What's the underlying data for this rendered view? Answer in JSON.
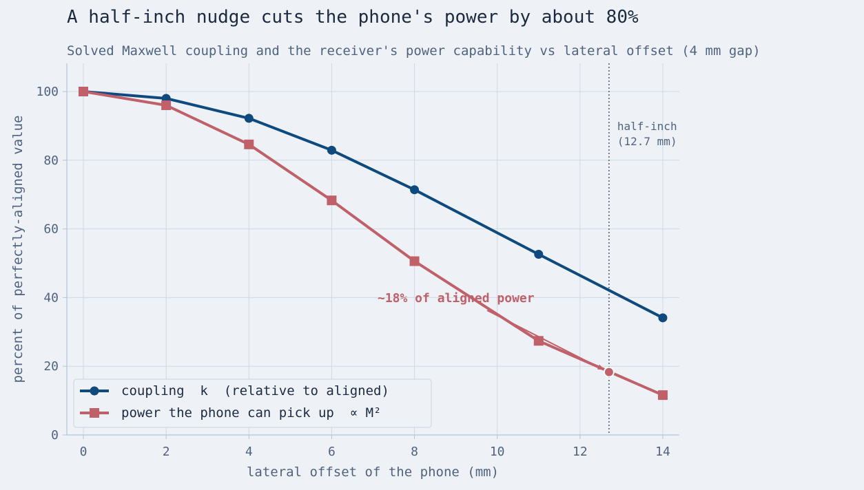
{
  "chart_data": {
    "type": "line",
    "title": "A half-inch nudge cuts the phone's power by about 80%",
    "subtitle": "Solved Maxwell coupling and the receiver's power capability vs lateral offset (4 mm gap)",
    "xlabel": "lateral offset of the phone (mm)",
    "ylabel": "percent of perfectly-aligned value",
    "xlim": [
      -0.3,
      14.4
    ],
    "ylim": [
      0,
      108
    ],
    "xticks": [
      0,
      2,
      4,
      6,
      8,
      10,
      12,
      14
    ],
    "yticks": [
      0,
      20,
      40,
      60,
      80,
      100
    ],
    "grid": true,
    "legend_position": "lower-left",
    "series": [
      {
        "name": "coupling  k  (relative to aligned)",
        "color": "#0f4a7e",
        "marker": "circle",
        "x": [
          0,
          2,
          4,
          6,
          8,
          11,
          14
        ],
        "y": [
          100,
          98,
          92.2,
          82.9,
          71.4,
          52.6,
          34.1
        ]
      },
      {
        "name": "power the phone can pick up  ∝ M²",
        "color": "#c0616a",
        "marker": "square",
        "x": [
          0,
          2,
          4,
          6,
          8,
          11,
          14
        ],
        "y": [
          100,
          96,
          84.6,
          68.3,
          50.6,
          27.4,
          11.6
        ]
      }
    ],
    "reference_line": {
      "x": 12.7,
      "label_line1": "half-inch",
      "label_line2": "(12.7 mm)"
    },
    "annotation": {
      "text": "~18% of aligned power",
      "x": 12.7,
      "y": 18.3,
      "color": "#c0616a"
    }
  }
}
